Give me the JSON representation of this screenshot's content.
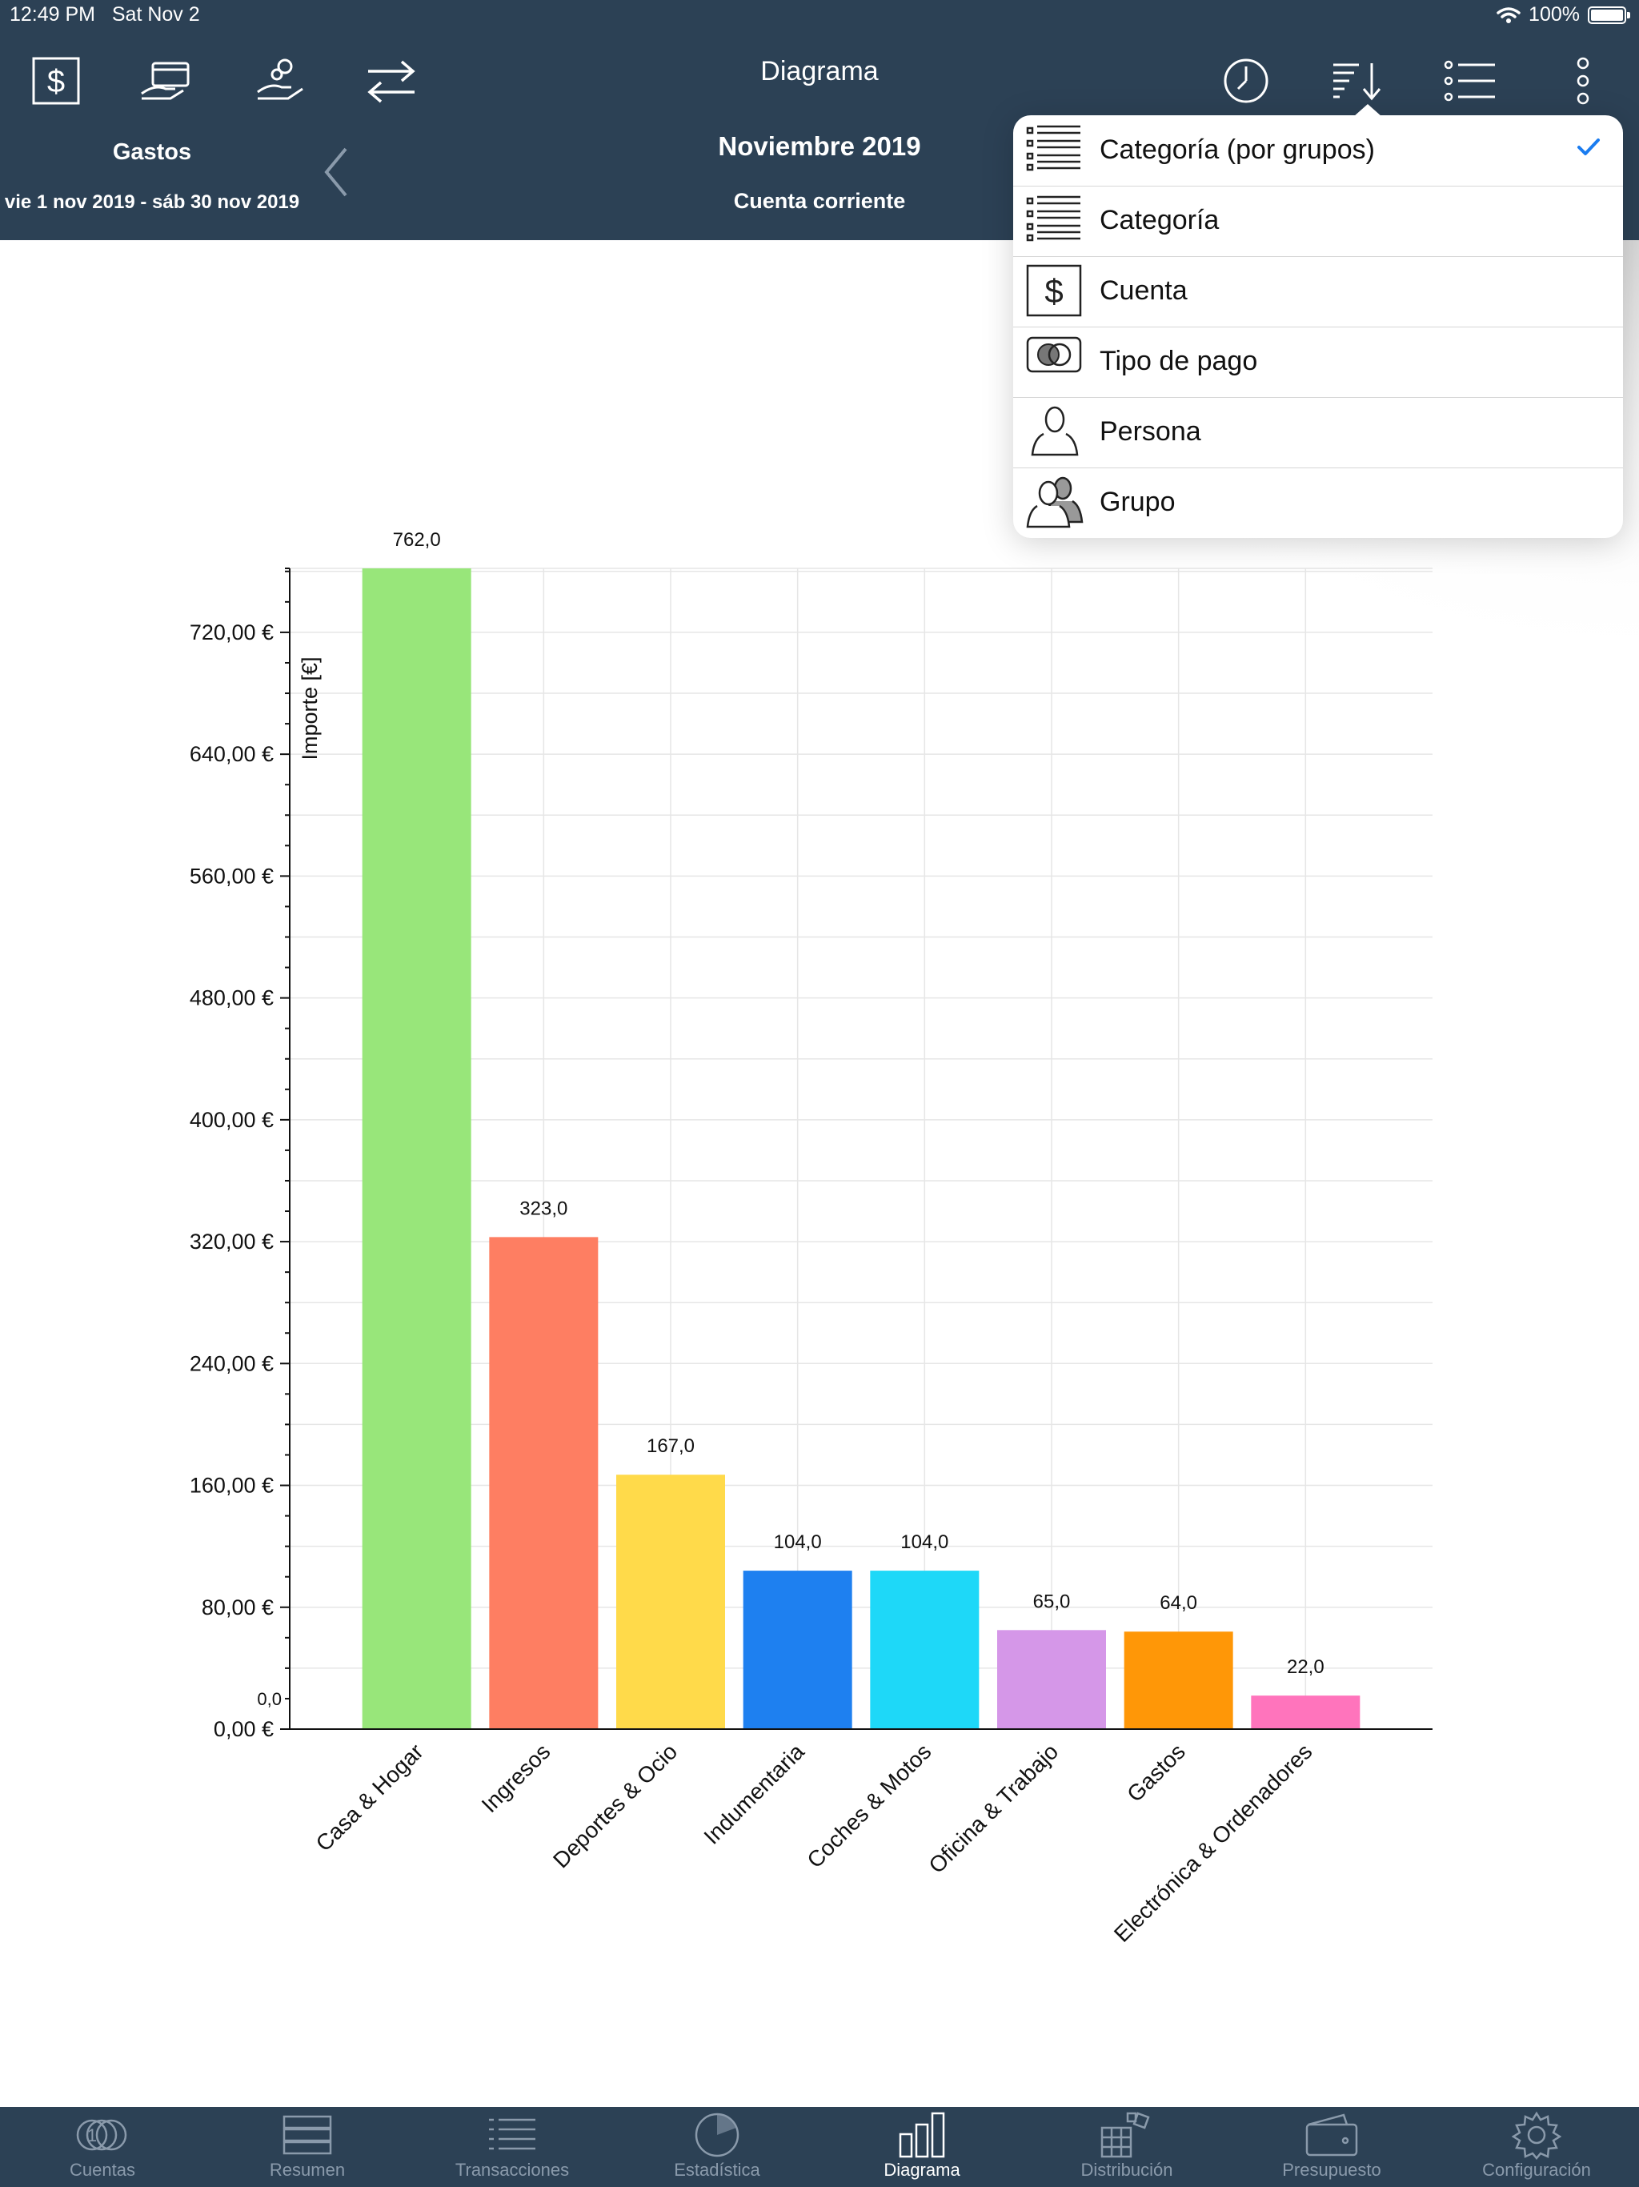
{
  "status_bar": {
    "time": "12:49 PM",
    "date": "Sat Nov 2",
    "battery": "100%",
    "battery_level": 1.0
  },
  "navbar": {
    "title": "Diagrama",
    "left_label": "Gastos",
    "date_range": "vie 1 nov 2019 - sáb 30 nov 2019",
    "period": "Noviembre 2019",
    "account": "Cuenta corriente",
    "left_icons": [
      "dollar-box-icon",
      "card-hand-icon",
      "coin-hand-icon",
      "transfer-arrows-icon"
    ],
    "right_icons": [
      "clock-icon",
      "sort-icon",
      "list-icon",
      "more-vertical-icon"
    ]
  },
  "sort_menu": {
    "items": [
      {
        "label": "Categoría (por grupos)",
        "icon": "list-icon",
        "checked": true
      },
      {
        "label": "Categoría",
        "icon": "list-icon",
        "checked": false
      },
      {
        "label": "Cuenta",
        "icon": "dollar-box-icon",
        "checked": false
      },
      {
        "label": "Tipo de pago",
        "icon": "payment-type-icon",
        "checked": false
      },
      {
        "label": "Persona",
        "icon": "person-icon",
        "checked": false
      },
      {
        "label": "Grupo",
        "icon": "group-icon",
        "checked": false
      }
    ]
  },
  "chart_data": {
    "type": "bar",
    "title": "",
    "xlabel": "",
    "ylabel": "Importe [€]",
    "categories": [
      "Casa & Hogar",
      "Ingresos",
      "Deportes & Ocio",
      "Indumentaria",
      "Coches & Motos",
      "Oficina & Trabajo",
      "Gastos",
      "Electrónica & Ordenadores"
    ],
    "values": [
      762,
      323,
      167,
      104,
      104,
      65,
      64,
      22
    ],
    "value_labels": [
      "762,0",
      "323,0",
      "167,0",
      "104,0",
      "104,0",
      "65,0",
      "64,0",
      "22,0"
    ],
    "colors": [
      "#98e67a",
      "#fe7e62",
      "#ffda4a",
      "#1e80f0",
      "#1ed8f8",
      "#d597e8",
      "#ff9707",
      "#ff74bc"
    ],
    "yticks": [
      0,
      80,
      160,
      240,
      320,
      400,
      480,
      560,
      640,
      720
    ],
    "ytick_labels": [
      "0,00 €",
      "80,00 €",
      "160,00 €",
      "240,00 €",
      "320,00 €",
      "400,00 €",
      "480,00 €",
      "560,00 €",
      "640,00 €",
      "720,00 €"
    ],
    "ylim": [
      0,
      762
    ],
    "zero_label": "0,0",
    "grid": true,
    "legend": "none"
  },
  "tab_bar": {
    "tabs": [
      {
        "label": "Cuentas",
        "icon": "coins-icon",
        "active": false
      },
      {
        "label": "Resumen",
        "icon": "summary-icon",
        "active": false
      },
      {
        "label": "Transacciones",
        "icon": "transactions-list-icon",
        "active": false
      },
      {
        "label": "Estadística",
        "icon": "statistics-icon",
        "active": false
      },
      {
        "label": "Diagrama",
        "icon": "bar-chart-icon",
        "active": true
      },
      {
        "label": "Distribución",
        "icon": "distribution-icon",
        "active": false
      },
      {
        "label": "Presupuesto",
        "icon": "wallet-icon",
        "active": false
      },
      {
        "label": "Configuración",
        "icon": "gear-icon",
        "active": false
      }
    ]
  }
}
